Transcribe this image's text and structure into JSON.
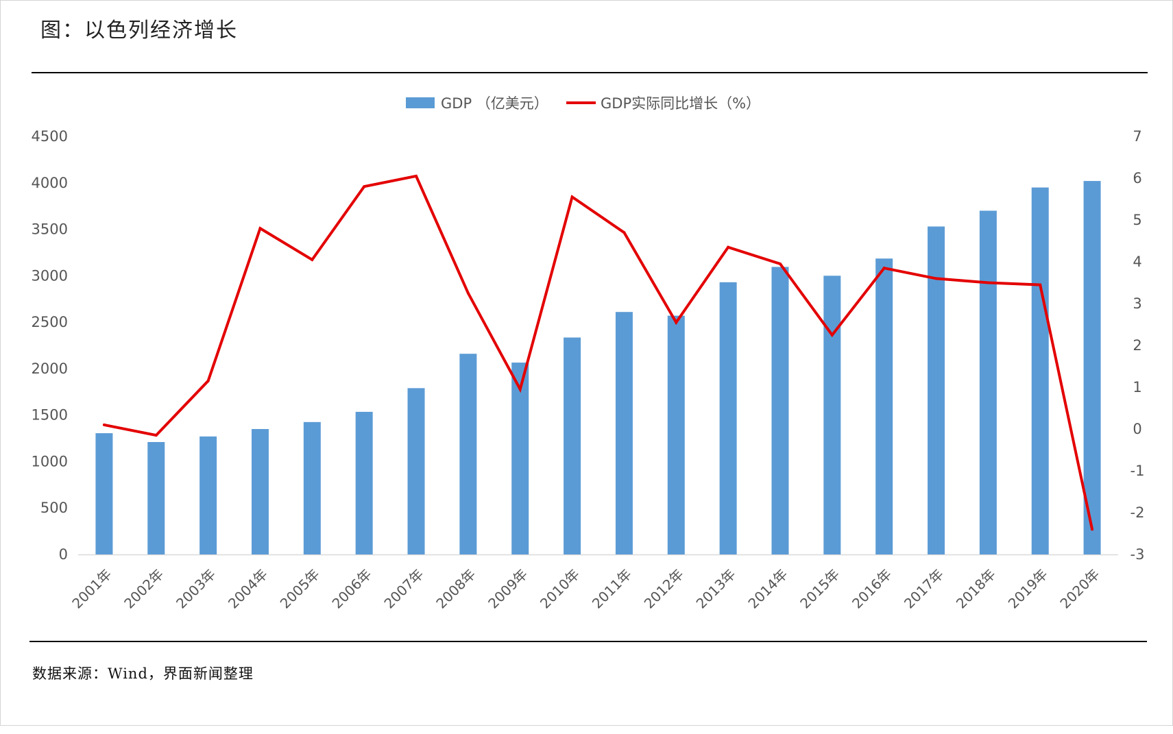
{
  "header": {
    "title": "图：以色列经济增长"
  },
  "footer": {
    "source": "数据来源：Wind，界面新闻整理"
  },
  "colors": {
    "bar": "#5b9bd5",
    "line": "#e30000",
    "rule": "#000000",
    "axis": "#d9d9d9"
  },
  "chart_data": {
    "type": "bar",
    "title": "",
    "xlabel": "",
    "ylabel": "",
    "categories": [
      "2001年",
      "2002年",
      "2003年",
      "2004年",
      "2005年",
      "2006年",
      "2007年",
      "2008年",
      "2009年",
      "2010年",
      "2011年",
      "2012年",
      "2013年",
      "2014年",
      "2015年",
      "2016年",
      "2017年",
      "2018年",
      "2019年",
      "2020年"
    ],
    "series": [
      {
        "name": "GDP （亿美元）",
        "type": "bar",
        "axis": "left",
        "values": [
          1305,
          1210,
          1270,
          1350,
          1425,
          1535,
          1790,
          2160,
          2065,
          2335,
          2610,
          2570,
          2930,
          3095,
          3000,
          3185,
          3530,
          3700,
          3950,
          4020
        ]
      },
      {
        "name": "GDP实际同比增长（%）",
        "type": "line",
        "axis": "right",
        "values": [
          0.1,
          -0.15,
          1.15,
          4.8,
          4.05,
          5.8,
          6.05,
          3.25,
          0.95,
          5.55,
          4.7,
          2.55,
          4.35,
          3.95,
          2.25,
          3.85,
          3.6,
          3.5,
          3.45,
          -2.4
        ]
      }
    ],
    "y_left": {
      "min": 0,
      "max": 4500,
      "ticks": [
        "0",
        "500",
        "1000",
        "1500",
        "2000",
        "2500",
        "3000",
        "3500",
        "4000",
        "4500"
      ]
    },
    "y_right": {
      "min": -3,
      "max": 7,
      "ticks": [
        "-3",
        "-2",
        "-1",
        "0",
        "1",
        "2",
        "3",
        "4",
        "5",
        "6",
        "7"
      ]
    },
    "legend": {
      "position": "top-center"
    },
    "grid": false
  }
}
